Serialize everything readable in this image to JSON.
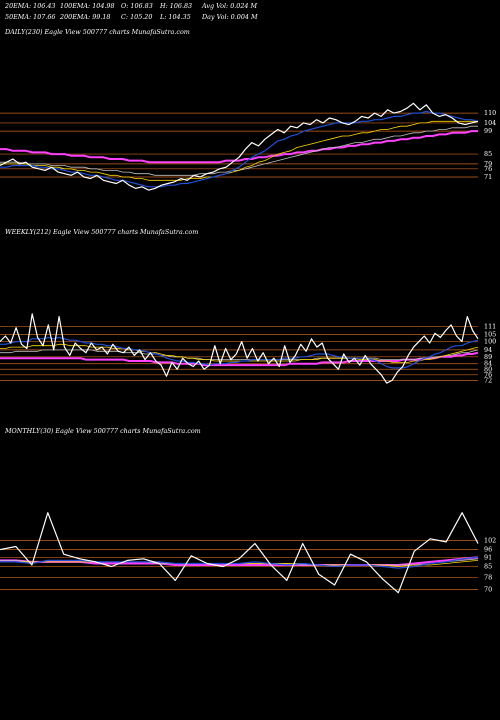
{
  "header": {
    "row1": [
      "20EMA: 106.43",
      "100EMA: 104.98",
      "O: 106.83",
      "H: 106.83",
      "Avg Vol: 0.024  M"
    ],
    "row2": [
      "50EMA: 107.66",
      "200EMA: 99.18",
      "C: 105.20",
      "L: 104.35",
      "Day Vol: 0.004  M"
    ]
  },
  "colors": {
    "background": "#000000",
    "price": "#ffffff",
    "level_line": "#c8641e",
    "ema20": "#1f4fd8",
    "ema50": "#ffd700",
    "ema100": "#c0c0c0",
    "ema200": "#ff40ff"
  },
  "chart_data": [
    {
      "type": "line",
      "title": "DAILY(230) Eagle  View  500777 charts MunafaSutra.com",
      "levels": [
        110,
        104,
        99,
        85,
        79,
        76,
        71
      ],
      "ylim": [
        60,
        118
      ],
      "series": [
        {
          "key": "price",
          "values": [
            78,
            80,
            82,
            79,
            80,
            77,
            76,
            75,
            77,
            74,
            73,
            72,
            74,
            71,
            70,
            72,
            69,
            68,
            67,
            69,
            66,
            64,
            65,
            63,
            64,
            66,
            67,
            68,
            70,
            69,
            72,
            71,
            73,
            74,
            76,
            77,
            80,
            83,
            88,
            92,
            90,
            94,
            97,
            100,
            98,
            102,
            101,
            104,
            103,
            106,
            104,
            107,
            106,
            104,
            103,
            105,
            108,
            107,
            110,
            108,
            112,
            110,
            111,
            113,
            116,
            112,
            115,
            110,
            108,
            109,
            107,
            104,
            103,
            104,
            105
          ]
        },
        {
          "key": "ema20",
          "values": [
            77,
            77,
            78,
            78,
            78,
            78,
            77,
            77,
            76,
            76,
            75,
            74,
            74,
            73,
            72,
            72,
            71,
            70,
            69,
            69,
            68,
            67,
            66,
            65,
            65,
            65,
            66,
            66,
            67,
            67,
            68,
            69,
            70,
            71,
            72,
            73,
            75,
            77,
            80,
            83,
            85,
            87,
            90,
            93,
            94,
            96,
            97,
            99,
            100,
            101,
            102,
            103,
            104,
            104,
            104,
            104,
            105,
            105,
            106,
            106,
            107,
            108,
            108,
            109,
            110,
            110,
            111,
            110,
            110,
            109,
            108,
            107,
            106,
            106,
            105
          ]
        },
        {
          "key": "ema50",
          "values": [
            79,
            79,
            79,
            79,
            79,
            78,
            78,
            78,
            77,
            77,
            76,
            76,
            75,
            75,
            74,
            74,
            73,
            72,
            72,
            71,
            71,
            70,
            70,
            69,
            69,
            69,
            69,
            69,
            69,
            70,
            70,
            70,
            71,
            71,
            72,
            73,
            74,
            75,
            77,
            78,
            80,
            81,
            83,
            85,
            86,
            87,
            89,
            90,
            91,
            92,
            93,
            94,
            95,
            96,
            96,
            97,
            98,
            98,
            99,
            100,
            100,
            101,
            102,
            102,
            103,
            104,
            104,
            105,
            105,
            105,
            105,
            105,
            105,
            105,
            105
          ]
        },
        {
          "key": "ema100",
          "values": [
            80,
            80,
            80,
            80,
            79,
            79,
            79,
            79,
            78,
            78,
            78,
            77,
            77,
            77,
            76,
            76,
            75,
            75,
            75,
            74,
            74,
            73,
            73,
            73,
            72,
            72,
            72,
            72,
            72,
            72,
            72,
            73,
            73,
            73,
            74,
            74,
            75,
            75,
            76,
            77,
            78,
            79,
            80,
            81,
            82,
            83,
            84,
            85,
            86,
            87,
            88,
            89,
            89,
            90,
            91,
            92,
            92,
            93,
            94,
            94,
            95,
            96,
            96,
            97,
            98,
            98,
            99,
            99,
            100,
            100,
            101,
            101,
            101,
            102,
            102
          ]
        },
        {
          "key": "ema200",
          "values": [
            88,
            88,
            87,
            87,
            87,
            86,
            86,
            86,
            85,
            85,
            85,
            84,
            84,
            84,
            83,
            83,
            83,
            82,
            82,
            82,
            81,
            81,
            81,
            80,
            80,
            80,
            80,
            80,
            80,
            80,
            80,
            80,
            80,
            80,
            80,
            81,
            81,
            81,
            82,
            82,
            83,
            83,
            84,
            84,
            85,
            85,
            86,
            86,
            87,
            87,
            88,
            88,
            89,
            89,
            90,
            90,
            91,
            91,
            92,
            92,
            93,
            93,
            94,
            94,
            95,
            95,
            96,
            96,
            97,
            97,
            98,
            98,
            98,
            99,
            99
          ]
        }
      ]
    },
    {
      "type": "line",
      "title": "WEEKLY(212) Eagle  View  500777 charts MunafaSutra.com",
      "levels": [
        111,
        105,
        100,
        94,
        89,
        84,
        80,
        76,
        72
      ],
      "ylim": [
        60,
        130
      ],
      "series": [
        {
          "key": "price",
          "values": [
            100,
            104,
            99,
            110,
            98,
            95,
            120,
            103,
            97,
            112,
            94,
            118,
            96,
            90,
            99,
            95,
            92,
            99,
            94,
            96,
            91,
            98,
            93,
            92,
            96,
            90,
            94,
            87,
            92,
            86,
            83,
            75,
            85,
            80,
            88,
            84,
            82,
            86,
            80,
            83,
            97,
            84,
            95,
            87,
            91,
            100,
            88,
            95,
            86,
            92,
            84,
            88,
            82,
            97,
            85,
            90,
            98,
            93,
            102,
            96,
            99,
            88,
            84,
            80,
            91,
            85,
            88,
            83,
            90,
            84,
            80,
            76,
            70,
            72,
            78,
            82,
            90,
            96,
            100,
            104,
            99,
            106,
            103,
            108,
            112,
            104,
            100,
            118,
            108,
            102
          ]
        },
        {
          "key": "ema20",
          "values": [
            98,
            98,
            99,
            100,
            100,
            100,
            102,
            102,
            102,
            103,
            102,
            103,
            102,
            101,
            101,
            100,
            99,
            99,
            98,
            98,
            97,
            97,
            96,
            95,
            95,
            94,
            94,
            93,
            92,
            91,
            90,
            88,
            87,
            86,
            86,
            85,
            85,
            84,
            84,
            83,
            84,
            84,
            84,
            85,
            85,
            86,
            86,
            87,
            87,
            87,
            87,
            87,
            87,
            88,
            88,
            88,
            89,
            89,
            90,
            91,
            91,
            91,
            90,
            89,
            89,
            88,
            88,
            88,
            88,
            87,
            86,
            84,
            82,
            81,
            81,
            81,
            82,
            84,
            86,
            88,
            89,
            91,
            92,
            94,
            96,
            97,
            97,
            99,
            100,
            101
          ]
        },
        {
          "key": "ema50",
          "values": [
            95,
            95,
            96,
            96,
            96,
            96,
            97,
            97,
            97,
            97,
            97,
            98,
            98,
            97,
            97,
            97,
            97,
            96,
            96,
            96,
            96,
            95,
            95,
            95,
            94,
            94,
            93,
            93,
            92,
            92,
            91,
            90,
            90,
            89,
            89,
            88,
            88,
            87,
            87,
            87,
            86,
            86,
            86,
            86,
            86,
            86,
            86,
            86,
            86,
            86,
            86,
            86,
            86,
            86,
            86,
            86,
            87,
            87,
            87,
            87,
            88,
            88,
            88,
            88,
            88,
            88,
            88,
            87,
            87,
            87,
            87,
            86,
            86,
            85,
            85,
            85,
            85,
            86,
            86,
            87,
            87,
            88,
            89,
            90,
            91,
            92,
            93,
            94,
            95,
            96
          ]
        },
        {
          "key": "ema100",
          "values": [
            92,
            92,
            92,
            93,
            93,
            93,
            93,
            93,
            94,
            94,
            94,
            94,
            94,
            94,
            94,
            94,
            94,
            94,
            93,
            93,
            93,
            93,
            93,
            92,
            92,
            92,
            92,
            91,
            91,
            91,
            90,
            90,
            89,
            89,
            89,
            88,
            88,
            88,
            87,
            87,
            87,
            87,
            87,
            87,
            87,
            87,
            87,
            87,
            87,
            87,
            87,
            87,
            87,
            87,
            87,
            87,
            87,
            87,
            87,
            88,
            88,
            88,
            88,
            88,
            88,
            88,
            88,
            88,
            88,
            88,
            88,
            87,
            87,
            87,
            87,
            87,
            87,
            87,
            88,
            88,
            88,
            89,
            89,
            90,
            90,
            91,
            92,
            92,
            93,
            94
          ]
        },
        {
          "key": "ema200",
          "values": [
            88,
            88,
            88,
            88,
            88,
            88,
            88,
            88,
            88,
            88,
            88,
            88,
            88,
            88,
            88,
            88,
            87,
            87,
            87,
            87,
            87,
            87,
            87,
            87,
            86,
            86,
            86,
            86,
            86,
            85,
            85,
            85,
            85,
            84,
            84,
            84,
            84,
            84,
            83,
            83,
            83,
            83,
            83,
            83,
            83,
            83,
            83,
            83,
            83,
            83,
            83,
            83,
            83,
            83,
            84,
            84,
            84,
            84,
            84,
            84,
            85,
            85,
            85,
            85,
            85,
            86,
            86,
            86,
            86,
            86,
            86,
            86,
            86,
            86,
            86,
            87,
            87,
            87,
            87,
            88,
            88,
            88,
            89,
            89,
            89,
            90,
            90,
            91,
            91,
            92
          ]
        }
      ]
    },
    {
      "type": "line",
      "title": "MONTHLY(30) Eagle  View  500777 charts MunafaSutra.com",
      "levels": [
        102,
        96,
        91,
        85,
        78,
        70
      ],
      "ylim": [
        60,
        125
      ],
      "series": [
        {
          "key": "price",
          "values": [
            96,
            98,
            86,
            120,
            93,
            90,
            88,
            85,
            89,
            90,
            87,
            76,
            92,
            87,
            85,
            90,
            100,
            86,
            76,
            100,
            80,
            73,
            93,
            88,
            77,
            68,
            95,
            103,
            101,
            120,
            100
          ]
        },
        {
          "key": "ema20",
          "values": [
            88,
            88,
            87,
            89,
            89,
            89,
            88,
            88,
            88,
            88,
            88,
            87,
            87,
            87,
            87,
            87,
            88,
            87,
            86,
            87,
            86,
            85,
            86,
            86,
            85,
            84,
            85,
            87,
            88,
            90,
            91
          ]
        },
        {
          "key": "ema50",
          "values": [
            88,
            88,
            88,
            88,
            88,
            88,
            88,
            88,
            88,
            88,
            88,
            87,
            87,
            87,
            87,
            87,
            87,
            87,
            87,
            87,
            86,
            86,
            86,
            86,
            86,
            85,
            86,
            86,
            87,
            88,
            89
          ]
        },
        {
          "key": "ema100",
          "values": [
            89,
            89,
            88,
            88,
            88,
            88,
            88,
            88,
            88,
            88,
            87,
            87,
            87,
            87,
            87,
            87,
            87,
            87,
            87,
            86,
            86,
            86,
            86,
            86,
            86,
            86,
            86,
            87,
            88,
            89,
            90
          ]
        },
        {
          "key": "ema200",
          "values": [
            89,
            89,
            88,
            88,
            88,
            88,
            87,
            87,
            87,
            87,
            87,
            86,
            86,
            86,
            86,
            86,
            86,
            86,
            86,
            86,
            86,
            86,
            86,
            86,
            86,
            86,
            87,
            88,
            89,
            90,
            91
          ]
        }
      ]
    }
  ]
}
